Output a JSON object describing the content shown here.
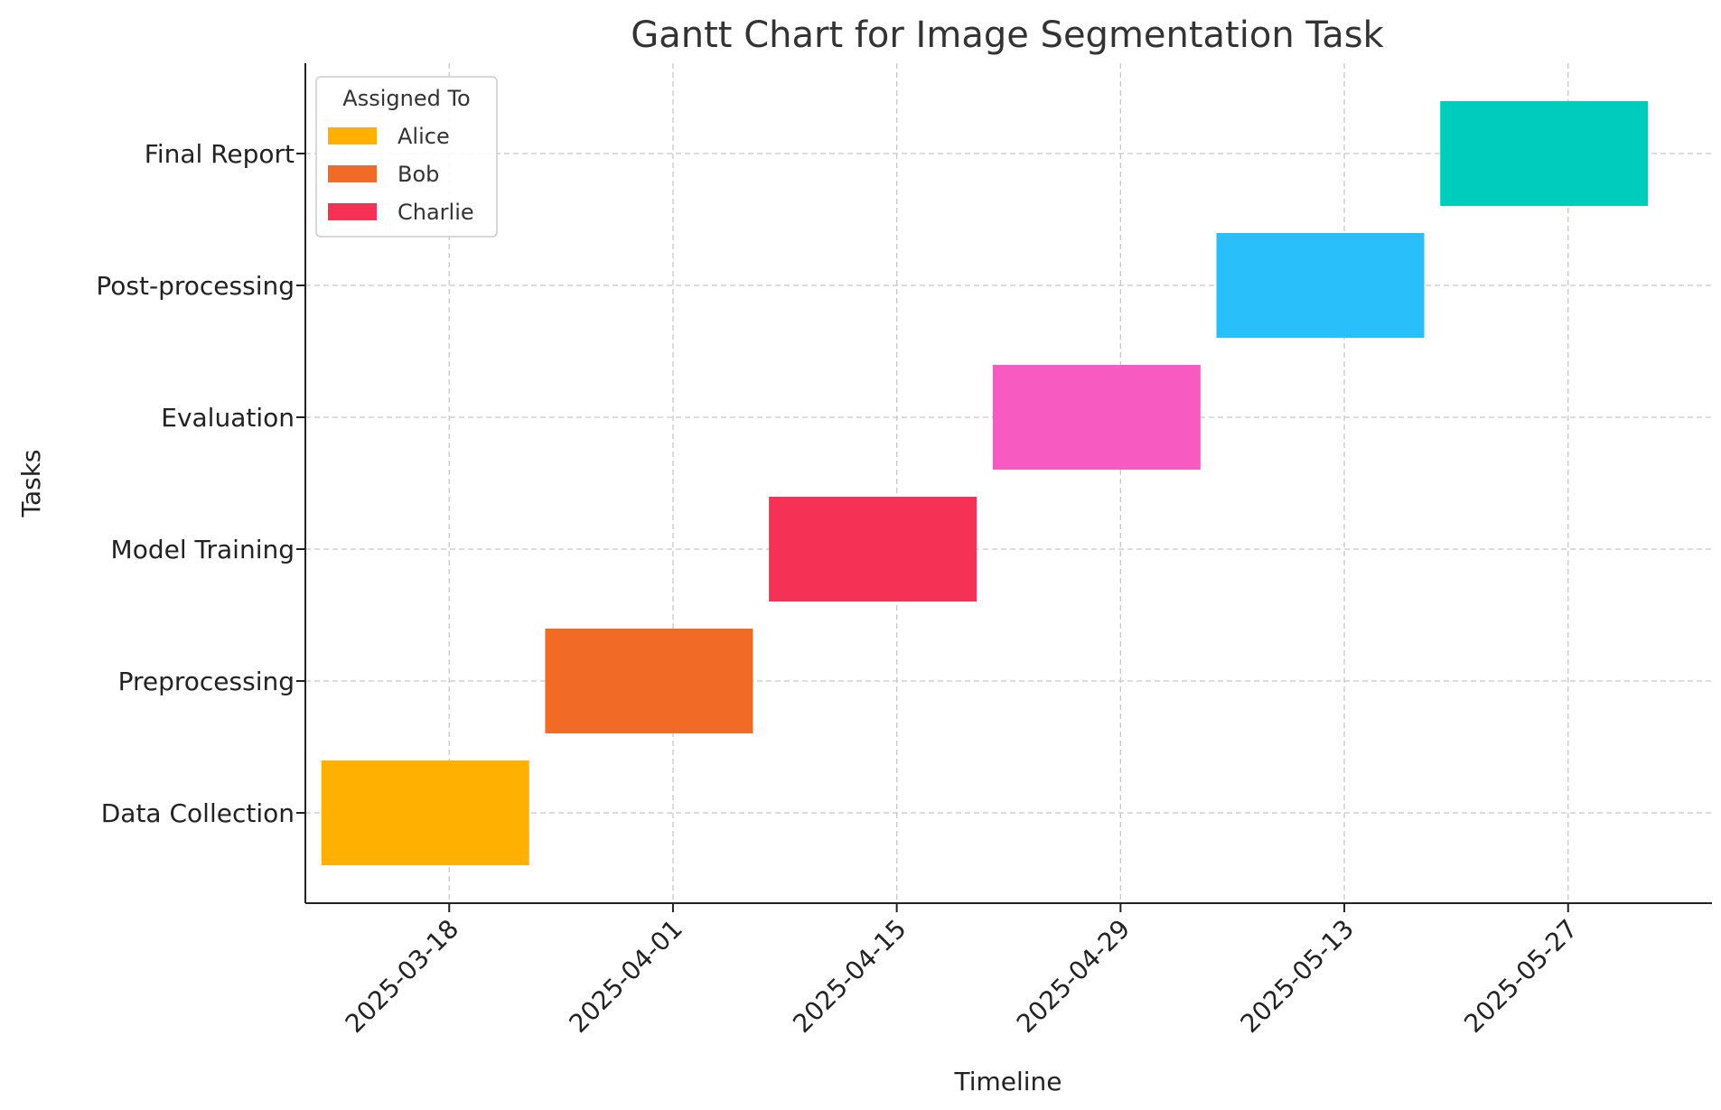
{
  "chart_data": {
    "type": "gantt",
    "title": "Gantt Chart for Image Segmentation Task",
    "xlabel": "Timeline",
    "ylabel": "Tasks",
    "x_range": [
      "2025-03-09",
      "2025-06-05"
    ],
    "x_ticks": [
      "2025-03-18",
      "2025-04-01",
      "2025-04-15",
      "2025-04-29",
      "2025-05-13",
      "2025-05-27"
    ],
    "grid": true,
    "tasks": [
      {
        "name": "Data Collection",
        "start": "2025-03-10",
        "end": "2025-03-23",
        "color": "#FFB000"
      },
      {
        "name": "Preprocessing",
        "start": "2025-03-24",
        "end": "2025-04-06",
        "color": "#F26B26"
      },
      {
        "name": "Model Training",
        "start": "2025-04-07",
        "end": "2025-04-20",
        "color": "#F53255"
      },
      {
        "name": "Evaluation",
        "start": "2025-04-21",
        "end": "2025-05-04",
        "color": "#F75BC1"
      },
      {
        "name": "Post-processing",
        "start": "2025-05-05",
        "end": "2025-05-18",
        "color": "#29BFFA"
      },
      {
        "name": "Final Report",
        "start": "2025-05-19",
        "end": "2025-06-01",
        "color": "#00CCBE"
      }
    ],
    "legend": {
      "title": "Assigned To",
      "position": "top-left",
      "entries": [
        {
          "label": "Alice",
          "color": "#FFB000"
        },
        {
          "label": "Bob",
          "color": "#F26B26"
        },
        {
          "label": "Charlie",
          "color": "#F53255"
        }
      ]
    }
  }
}
